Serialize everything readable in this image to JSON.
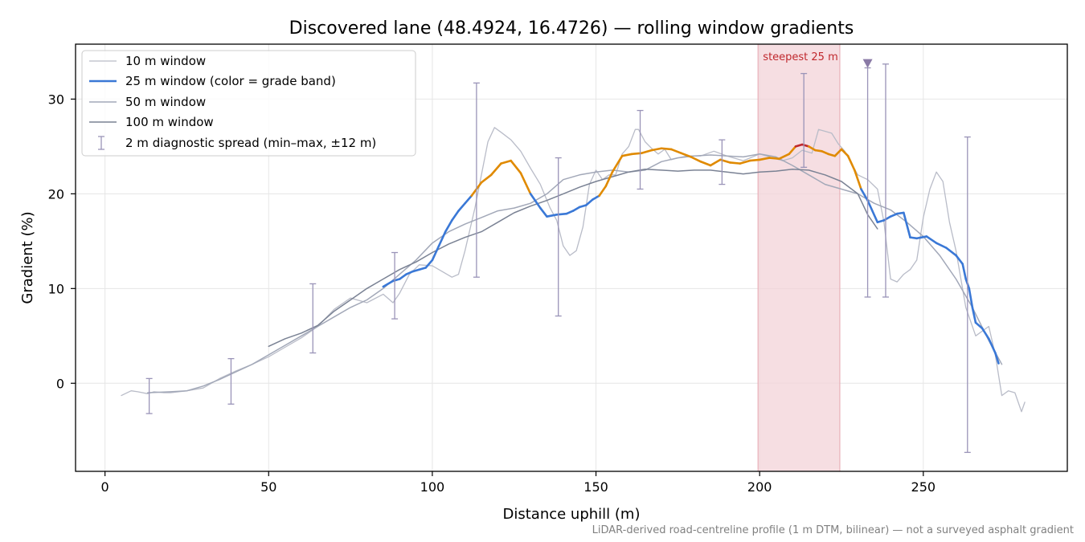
{
  "chart_data": {
    "type": "line",
    "title": "Discovered lane (48.4924, 16.4726) — rolling window gradients",
    "xlabel": "Distance uphill (m)",
    "ylabel": "Gradient (%)",
    "xlim": [
      -9,
      294
    ],
    "ylim": [
      -9.3,
      35.8
    ],
    "xticks": [
      0,
      50,
      100,
      150,
      200,
      250
    ],
    "yticks": [
      0,
      10,
      20,
      30
    ],
    "grid": true,
    "legend_placement": "top-left",
    "footnote": "LiDAR-derived road-centreline profile (1 m DTM, bilinear) — not a surveyed asphalt gradient",
    "highlight": {
      "label": "steepest 25 m",
      "x_start": 199.5,
      "x_end": 224.5,
      "color": "#f3d3d8",
      "marker_x": 233,
      "marker_y": 33.8
    },
    "grade_bands": [
      {
        "min": -100,
        "max": 20,
        "color": "#3a78d6"
      },
      {
        "min": 20,
        "max": 25,
        "color": "#e08a00"
      },
      {
        "min": 25,
        "max": 100,
        "color": "#c0282d"
      }
    ],
    "series": [
      {
        "name": "10 m window",
        "color": "#b9bcc8",
        "width": 1.3,
        "x": [
          5,
          8,
          10,
          13,
          15,
          18,
          20,
          25,
          30,
          35,
          40,
          45,
          50,
          55,
          60,
          65,
          70,
          75,
          80,
          85,
          88,
          90,
          93,
          96,
          100,
          103,
          106,
          108,
          110,
          113,
          115,
          117,
          119,
          121,
          124,
          127,
          130,
          133,
          136,
          138,
          140,
          142,
          144,
          146,
          148,
          150,
          152,
          154,
          156,
          158,
          160,
          162,
          163,
          165,
          167,
          169,
          171,
          173,
          175,
          178,
          182,
          186,
          190,
          195,
          200,
          204,
          207,
          210,
          213,
          216,
          218,
          220,
          222,
          224,
          226,
          228,
          230,
          233,
          236,
          238,
          240,
          242,
          244,
          246,
          248,
          250,
          252,
          254,
          256,
          258,
          260,
          263,
          266,
          268,
          270,
          272,
          274,
          276,
          278,
          280,
          281
        ],
        "y": [
          -1.3,
          -0.8,
          -0.9,
          -1.1,
          -0.9,
          -1.0,
          -1.0,
          -0.8,
          -0.5,
          0.5,
          1.3,
          2.0,
          2.8,
          3.8,
          4.8,
          6.0,
          7.8,
          9.0,
          8.5,
          9.4,
          8.5,
          9.5,
          11.5,
          12.5,
          12.4,
          11.8,
          11.2,
          11.5,
          14.0,
          18.5,
          22.0,
          25.5,
          27.0,
          26.5,
          25.7,
          24.5,
          22.7,
          21.0,
          18.5,
          17.2,
          14.5,
          13.5,
          14.0,
          16.5,
          21.0,
          22.5,
          21.5,
          22.0,
          22.0,
          24.2,
          25.0,
          26.8,
          26.8,
          25.5,
          24.8,
          24.2,
          24.7,
          23.6,
          23.8,
          24.0,
          24.0,
          24.5,
          24.0,
          23.5,
          24.2,
          23.8,
          23.5,
          23.8,
          24.6,
          24.3,
          26.8,
          26.6,
          26.4,
          25.3,
          24.5,
          23.2,
          22.0,
          21.5,
          20.5,
          17.0,
          11.0,
          10.7,
          11.5,
          12.0,
          13.0,
          17.5,
          20.5,
          22.3,
          21.3,
          17.0,
          14.0,
          8.0,
          5.0,
          5.5,
          6.0,
          3.0,
          -1.3,
          -0.8,
          -1.0,
          -3.0,
          -2.0
        ]
      },
      {
        "name": "25 m window (color = grade band)",
        "color": "#3a78d6",
        "width": 2.6,
        "x": [
          85,
          88,
          90,
          92,
          94,
          96,
          98,
          100,
          102,
          104,
          106,
          108,
          110,
          112,
          115,
          118,
          121,
          124,
          127,
          130,
          133,
          135,
          138,
          141,
          143,
          145,
          147,
          149,
          151,
          153,
          155,
          158,
          161,
          164,
          167,
          170,
          173,
          176,
          179,
          182,
          185,
          188,
          191,
          194,
          197,
          200,
          203,
          206,
          209,
          211,
          213,
          215,
          217,
          219,
          221,
          223,
          225,
          227,
          229,
          231,
          233,
          236,
          238,
          240,
          242,
          244,
          246,
          248,
          251,
          254,
          257,
          260,
          262,
          263,
          264,
          265,
          266,
          268,
          270,
          272,
          273
        ],
        "y": [
          10.2,
          10.8,
          11.0,
          11.5,
          11.8,
          12.0,
          12.2,
          13.0,
          14.5,
          16.0,
          17.2,
          18.2,
          19.0,
          19.8,
          21.2,
          22.0,
          23.2,
          23.5,
          22.2,
          20.0,
          18.5,
          17.6,
          17.8,
          17.9,
          18.2,
          18.6,
          18.8,
          19.4,
          19.8,
          20.8,
          22.3,
          24.0,
          24.2,
          24.3,
          24.6,
          24.8,
          24.7,
          24.3,
          23.9,
          23.4,
          23.0,
          23.6,
          23.3,
          23.2,
          23.5,
          23.6,
          23.8,
          23.7,
          24.2,
          25.0,
          25.2,
          25.0,
          24.6,
          24.5,
          24.2,
          24.0,
          24.7,
          24.0,
          22.5,
          20.5,
          19.3,
          17.0,
          17.2,
          17.6,
          17.9,
          18.0,
          15.4,
          15.3,
          15.5,
          14.8,
          14.3,
          13.5,
          12.6,
          11.0,
          10.0,
          8.0,
          6.4,
          5.8,
          4.7,
          3.2,
          2.1
        ]
      },
      {
        "name": "50 m window",
        "color": "#a2a8b8",
        "width": 1.5,
        "x": [
          13,
          20,
          25,
          30,
          35,
          40,
          45,
          50,
          55,
          60,
          65,
          70,
          75,
          80,
          85,
          90,
          95,
          100,
          105,
          110,
          115,
          120,
          125,
          130,
          135,
          140,
          145,
          150,
          155,
          160,
          165,
          170,
          175,
          180,
          185,
          190,
          195,
          200,
          205,
          210,
          215,
          220,
          225,
          230,
          235,
          240,
          245,
          250,
          255,
          260,
          265,
          270,
          274
        ],
        "y": [
          -1.0,
          -0.9,
          -0.8,
          -0.3,
          0.4,
          1.2,
          2.0,
          3.0,
          4.0,
          5.0,
          6.0,
          7.0,
          8.0,
          8.8,
          10.0,
          11.5,
          13.0,
          14.8,
          16.0,
          16.8,
          17.5,
          18.2,
          18.5,
          19.0,
          20.0,
          21.5,
          22.0,
          22.3,
          22.5,
          22.3,
          22.5,
          23.4,
          23.8,
          24.0,
          24.1,
          24.0,
          23.9,
          24.2,
          23.9,
          23.0,
          22.0,
          21.0,
          20.5,
          20.0,
          19.0,
          18.3,
          17.0,
          15.5,
          13.5,
          11.0,
          8.0,
          4.5,
          2.0
        ]
      },
      {
        "name": "100 m window",
        "color": "#7a8294",
        "width": 1.5,
        "x": [
          50,
          55,
          60,
          65,
          70,
          75,
          80,
          85,
          90,
          95,
          100,
          105,
          110,
          115,
          120,
          125,
          130,
          135,
          140,
          145,
          150,
          155,
          160,
          165,
          170,
          175,
          180,
          185,
          190,
          195,
          200,
          205,
          210,
          215,
          220,
          225,
          230,
          233,
          236
        ],
        "y": [
          3.9,
          4.7,
          5.3,
          6.1,
          7.6,
          8.8,
          10.0,
          11.0,
          12.0,
          12.8,
          13.8,
          14.7,
          15.4,
          16.0,
          17.0,
          18.0,
          18.7,
          19.3,
          20.0,
          20.7,
          21.3,
          21.8,
          22.3,
          22.6,
          22.5,
          22.4,
          22.5,
          22.5,
          22.3,
          22.1,
          22.3,
          22.4,
          22.6,
          22.5,
          22.0,
          21.3,
          20.0,
          17.8,
          16.3
        ]
      }
    ],
    "diagnostic_spread": {
      "name": "2 m diagnostic spread (min–max, ±12 m)",
      "color": "#9a94b8",
      "points": [
        {
          "x": 13.5,
          "min": -3.2,
          "max": 0.5
        },
        {
          "x": 38.5,
          "min": -2.2,
          "max": 2.6
        },
        {
          "x": 63.5,
          "min": 3.2,
          "max": 10.5
        },
        {
          "x": 88.5,
          "min": 6.8,
          "max": 13.8
        },
        {
          "x": 113.5,
          "min": 11.2,
          "max": 31.7
        },
        {
          "x": 138.5,
          "min": 7.1,
          "max": 23.8
        },
        {
          "x": 163.5,
          "min": 20.5,
          "max": 28.8
        },
        {
          "x": 188.5,
          "min": 21.0,
          "max": 25.7
        },
        {
          "x": 213.5,
          "min": 22.8,
          "max": 32.7
        },
        {
          "x": 233.0,
          "min": 9.1,
          "max": 33.3
        },
        {
          "x": 238.5,
          "min": 9.1,
          "max": 33.7
        },
        {
          "x": 263.5,
          "min": -7.3,
          "max": 26.0
        }
      ]
    }
  }
}
